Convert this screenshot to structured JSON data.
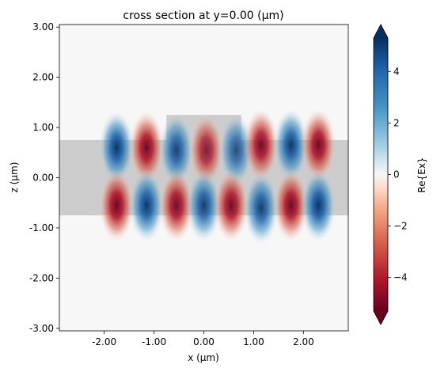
{
  "chart_data": {
    "type": "heatmap",
    "title": "cross section at y=0.00 (μm)",
    "xlabel": "x (μm)",
    "ylabel": "z (μm)",
    "xlim": [
      -2.9,
      2.9
    ],
    "ylim": [
      -3.05,
      3.05
    ],
    "x_ticks": [
      {
        "value": -2.0,
        "label": "-2.00"
      },
      {
        "value": -1.0,
        "label": "-1.00"
      },
      {
        "value": 0.0,
        "label": "0.00"
      },
      {
        "value": 1.0,
        "label": "1.00"
      },
      {
        "value": 2.0,
        "label": "2.00"
      }
    ],
    "y_ticks": [
      {
        "value": 3.0,
        "label": "3.00"
      },
      {
        "value": 2.0,
        "label": "2.00"
      },
      {
        "value": 1.0,
        "label": "1.00"
      },
      {
        "value": 0.0,
        "label": "0.00"
      },
      {
        "value": -1.0,
        "label": "-1.00"
      },
      {
        "value": -2.0,
        "label": "-2.00"
      },
      {
        "value": -3.0,
        "label": "-3.00"
      }
    ],
    "colorbar": {
      "label": "Re{Ex}",
      "colormap": "RdBu",
      "vmin": -5.3,
      "vmax": 5.3,
      "extend": "both",
      "ticks": [
        {
          "value": 4,
          "label": "4"
        },
        {
          "value": 2,
          "label": "2"
        },
        {
          "value": 0,
          "label": "0"
        },
        {
          "value": -2,
          "label": "−2"
        },
        {
          "value": -4,
          "label": "−4"
        }
      ]
    },
    "structures": [
      {
        "name": "waveguide slab",
        "x": [
          -2.9,
          2.9
        ],
        "z": [
          -0.75,
          0.75
        ],
        "color": "#aaaaaa"
      },
      {
        "name": "upper block",
        "x": [
          -0.75,
          0.75
        ],
        "z": [
          0.75,
          1.25
        ],
        "color": "#aaaaaa"
      }
    ],
    "field_lobes": [
      {
        "x": -1.75,
        "z": 0.6,
        "value": 5.0
      },
      {
        "x": -1.15,
        "z": 0.6,
        "value": -4.8
      },
      {
        "x": -0.55,
        "z": 0.55,
        "value": 4.2
      },
      {
        "x": 0.05,
        "z": 0.55,
        "value": -3.8
      },
      {
        "x": 0.65,
        "z": 0.55,
        "value": 3.6
      },
      {
        "x": 1.15,
        "z": 0.65,
        "value": -4.6
      },
      {
        "x": 1.75,
        "z": 0.65,
        "value": 4.8
      },
      {
        "x": 2.3,
        "z": 0.65,
        "value": -4.8
      },
      {
        "x": -1.75,
        "z": -0.55,
        "value": -5.0
      },
      {
        "x": -1.15,
        "z": -0.55,
        "value": 4.8
      },
      {
        "x": -0.55,
        "z": -0.55,
        "value": -4.6
      },
      {
        "x": 0.0,
        "z": -0.55,
        "value": 4.4
      },
      {
        "x": 0.55,
        "z": -0.55,
        "value": -4.6
      },
      {
        "x": 1.15,
        "z": -0.6,
        "value": 4.4
      },
      {
        "x": 1.75,
        "z": -0.55,
        "value": -4.8
      },
      {
        "x": 2.3,
        "z": -0.55,
        "value": 5.0
      }
    ]
  }
}
